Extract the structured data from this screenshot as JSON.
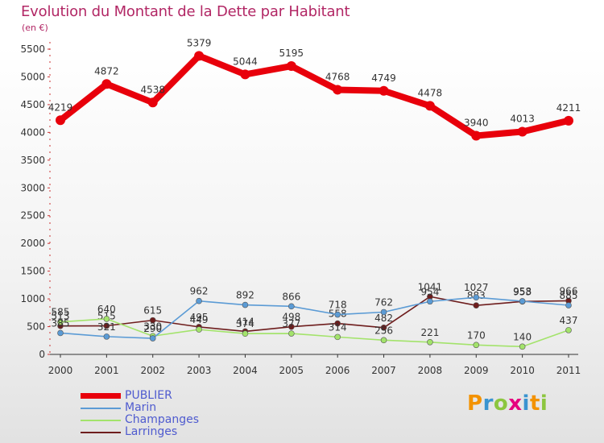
{
  "chart_data": {
    "type": "line",
    "title": "Evolution du Montant de la Dette par Habitant",
    "subtitle": "(en €)",
    "categories": [
      "2000",
      "2001",
      "2002",
      "2003",
      "2004",
      "2005",
      "2006",
      "2007",
      "2008",
      "2009",
      "2010",
      "2011"
    ],
    "yticks": [
      "0",
      "500",
      "1000",
      "1500",
      "2000",
      "2500",
      "3000",
      "3500",
      "4000",
      "4500",
      "5000",
      "5500"
    ],
    "ylim": [
      0,
      5500
    ],
    "grid": false,
    "legend_placement": "bottom-left",
    "series": [
      {
        "name": "PUBLIER",
        "color": "#e8000b",
        "values": [
          4219,
          4872,
          4538,
          5379,
          5044,
          5195,
          4768,
          4749,
          4478,
          3940,
          4013,
          4211
        ],
        "labels": [
          "4219",
          "4872",
          "4538",
          "5379",
          "5044",
          "5195",
          "4768",
          "4749",
          "4478",
          "3940",
          "4013",
          "4211"
        ]
      },
      {
        "name": "Marin",
        "color": "#5b9bd5",
        "values": [
          385,
          321,
          290,
          962,
          892,
          866,
          718,
          762,
          954,
          1027,
          958,
          885
        ],
        "labels": [
          "385",
          "321",
          "290",
          "962",
          "892",
          "866",
          "718",
          "762",
          "954",
          "1027",
          "958",
          "885"
        ]
      },
      {
        "name": "Champanges",
        "color": "#a3e36b",
        "values": [
          585,
          640,
          330,
          449,
          374,
          377,
          314,
          256,
          221,
          170,
          140,
          437
        ],
        "labels": [
          "585",
          "640",
          "330",
          "449",
          "374",
          "377",
          "314",
          "256",
          "221",
          "170",
          "140",
          "437"
        ]
      },
      {
        "name": "Larringes",
        "color": "#6e1d1d",
        "values": [
          513,
          515,
          615,
          495,
          414,
          498,
          558,
          482,
          1041,
          883,
          953,
          966
        ],
        "labels": [
          "513",
          "515",
          "615",
          "495",
          "414",
          "498",
          "558",
          "482",
          "1041",
          "883",
          "953",
          "966"
        ]
      }
    ]
  },
  "logo": {
    "text": "Proxiti",
    "letter_colors": [
      "#f39200",
      "#3a94d0",
      "#8cc63f",
      "#e6007e",
      "#3a94d0",
      "#f39200",
      "#8cc63f"
    ]
  }
}
